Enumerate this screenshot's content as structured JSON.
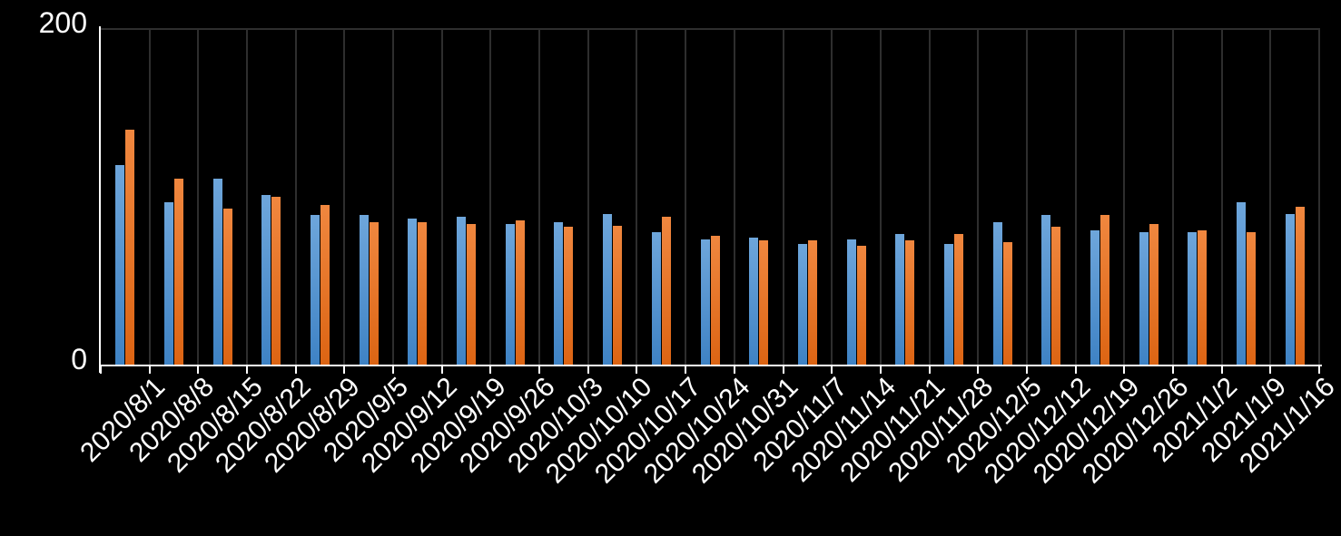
{
  "chart_data": {
    "type": "bar",
    "title": "",
    "categories": [
      "2020/8/1",
      "2020/8/8",
      "2020/8/15",
      "2020/8/22",
      "2020/8/29",
      "2020/9/5",
      "2020/9/12",
      "2020/9/19",
      "2020/9/26",
      "2020/10/3",
      "2020/10/10",
      "2020/10/17",
      "2020/10/24",
      "2020/10/31",
      "2020/11/7",
      "2020/11/14",
      "2020/11/21",
      "2020/11/28",
      "2020/12/5",
      "2020/12/12",
      "2020/12/19",
      "2020/12/26",
      "2021/1/2",
      "2021/1/9",
      "2021/1/16"
    ],
    "series": [
      {
        "name": "blue",
        "values": [
          119,
          97,
          111,
          101,
          89,
          89,
          87,
          88,
          84,
          85,
          90,
          79,
          75,
          76,
          72,
          75,
          78,
          72,
          85,
          89,
          80,
          79,
          79,
          97,
          90
        ],
        "color_top": "#6ea6db",
        "color_bottom": "#3e82c4"
      },
      {
        "name": "orange",
        "values": [
          140,
          111,
          93,
          100,
          95,
          85,
          85,
          84,
          86,
          82,
          83,
          88,
          77,
          74,
          74,
          71,
          74,
          78,
          73,
          82,
          89,
          84,
          80,
          79,
          94
        ],
        "color_top": "#f0873f",
        "color_bottom": "#dc6413"
      }
    ],
    "ylim": [
      0,
      200
    ],
    "y_tick_labels": [
      "200",
      "0"
    ],
    "x_tick_rotation_deg": 45,
    "grid": "vertical-category-boundaries-and-top",
    "legend_position": "none"
  },
  "colors": {
    "background": "#000000",
    "axis": "#ffffff",
    "gridline": "#2e2e2e",
    "label": "#ffffff"
  }
}
